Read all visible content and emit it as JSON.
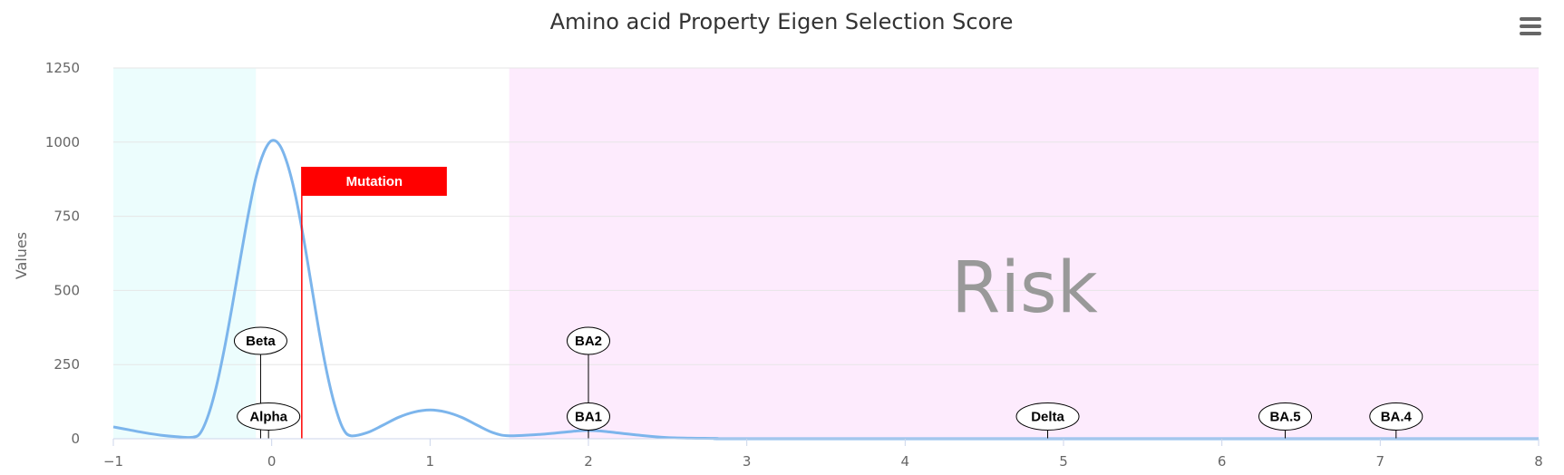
{
  "chart_data": {
    "type": "line",
    "title": "Amino acid Property Eigen Selection Score",
    "xlabel": "",
    "ylabel": "Values",
    "xlim": [
      -1,
      8
    ],
    "ylim": [
      0,
      1250
    ],
    "x_ticks": [
      "−1",
      "0",
      "1",
      "2",
      "3",
      "4",
      "5",
      "6",
      "7",
      "8"
    ],
    "y_ticks": [
      "0",
      "250",
      "500",
      "750",
      "1000",
      "1250"
    ],
    "grid": true,
    "legend": "none",
    "series": [
      {
        "color": "#7cb5ec",
        "points": [
          [
            -1.0,
            40
          ],
          [
            -0.9,
            30
          ],
          [
            -0.8,
            20
          ],
          [
            -0.7,
            12
          ],
          [
            -0.6,
            7
          ],
          [
            -0.5,
            5
          ],
          [
            -0.45,
            20
          ],
          [
            -0.4,
            80
          ],
          [
            -0.35,
            175
          ],
          [
            -0.3,
            300
          ],
          [
            -0.25,
            445
          ],
          [
            -0.2,
            600
          ],
          [
            -0.15,
            750
          ],
          [
            -0.1,
            880
          ],
          [
            -0.05,
            965
          ],
          [
            0.0,
            1005
          ],
          [
            0.05,
            990
          ],
          [
            0.1,
            925
          ],
          [
            0.15,
            820
          ],
          [
            0.2,
            680
          ],
          [
            0.25,
            520
          ],
          [
            0.3,
            360
          ],
          [
            0.35,
            220
          ],
          [
            0.4,
            110
          ],
          [
            0.45,
            35
          ],
          [
            0.5,
            10
          ],
          [
            0.6,
            20
          ],
          [
            0.7,
            45
          ],
          [
            0.8,
            72
          ],
          [
            0.9,
            90
          ],
          [
            1.0,
            97
          ],
          [
            1.1,
            90
          ],
          [
            1.2,
            72
          ],
          [
            1.3,
            45
          ],
          [
            1.4,
            20
          ],
          [
            1.5,
            10
          ],
          [
            1.7,
            15
          ],
          [
            1.9,
            25
          ],
          [
            2.0,
            28
          ],
          [
            2.1,
            25
          ],
          [
            2.3,
            13
          ],
          [
            2.5,
            4
          ],
          [
            2.8,
            1
          ],
          [
            3.0,
            0
          ],
          [
            5.0,
            0
          ],
          [
            8.0,
            0
          ]
        ]
      }
    ],
    "bands": [
      {
        "from": -1.0,
        "to": -0.1,
        "color": "#ecfdfd"
      },
      {
        "from": 1.5,
        "to": 8.0,
        "color": "#fdebfd",
        "label": "Risk"
      }
    ],
    "plot_line": {
      "value": 0.19,
      "color": "#ff0000",
      "label": "Mutation"
    },
    "annotations": [
      {
        "text": "Beta",
        "x": -0.07,
        "y": 0,
        "label_y": 330
      },
      {
        "text": "Alpha",
        "x": -0.02,
        "y": 0,
        "label_y": 75
      },
      {
        "text": "BA2",
        "x": 2.0,
        "y": 0,
        "label_y": 330
      },
      {
        "text": "BA1",
        "x": 2.0,
        "y": 0,
        "label_y": 75
      },
      {
        "text": "Delta",
        "x": 4.9,
        "y": 0,
        "label_y": 75
      },
      {
        "text": "BA.5",
        "x": 6.4,
        "y": 0,
        "label_y": 75
      },
      {
        "text": "BA.4",
        "x": 7.1,
        "y": 0,
        "label_y": 75
      }
    ]
  },
  "toolbar": {
    "menu_icon": "hamburger-menu-icon"
  },
  "colors": {
    "axis_text": "#666666",
    "grid": "#e6e6e6",
    "title": "#333333"
  }
}
